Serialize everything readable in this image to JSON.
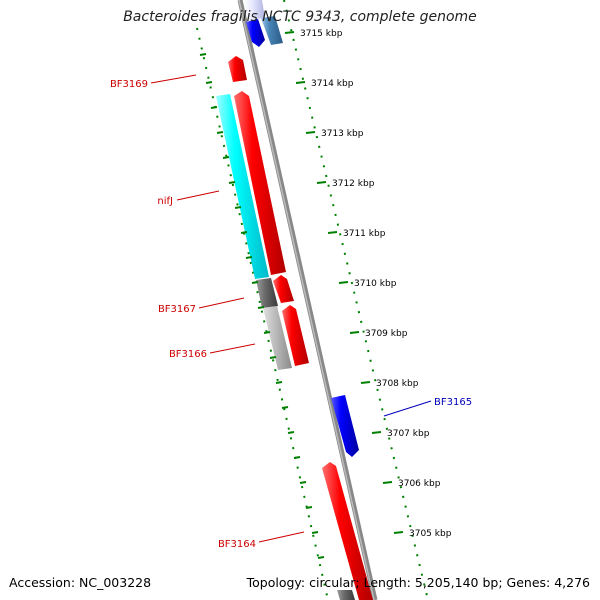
{
  "title": "Bacteroides fragilis NCTC 9343, complete genome",
  "footer": {
    "accession": "Accession: NC_003228",
    "topology": "Topology: circular; Length: 5,205,140 bp; Genes: 4,276"
  },
  "ruler": {
    "unit": "kbp",
    "ticks": [
      "3715 kbp",
      "3714 kbp",
      "3713 kbp",
      "3712 kbp",
      "3711 kbp",
      "3710 kbp",
      "3709 kbp",
      "3708 kbp",
      "3707 kbp",
      "3706 kbp",
      "3705 kbp"
    ]
  },
  "colors": {
    "forward_gene": "#ff0000",
    "reverse_gene": "#0000ff",
    "cds_cyan": "#00ffff",
    "label_forward": "#cc0000",
    "label_reverse": "#0000bb",
    "backbone": "#888888",
    "ruler_ticks": "#008000"
  },
  "gene_labels": [
    {
      "text": "BF3169",
      "strand": "forward"
    },
    {
      "text": "nifJ",
      "strand": "forward"
    },
    {
      "text": "BF3167",
      "strand": "forward"
    },
    {
      "text": "BF3166",
      "strand": "forward"
    },
    {
      "text": "BF3165",
      "strand": "reverse"
    },
    {
      "text": "BF3164",
      "strand": "forward"
    }
  ]
}
